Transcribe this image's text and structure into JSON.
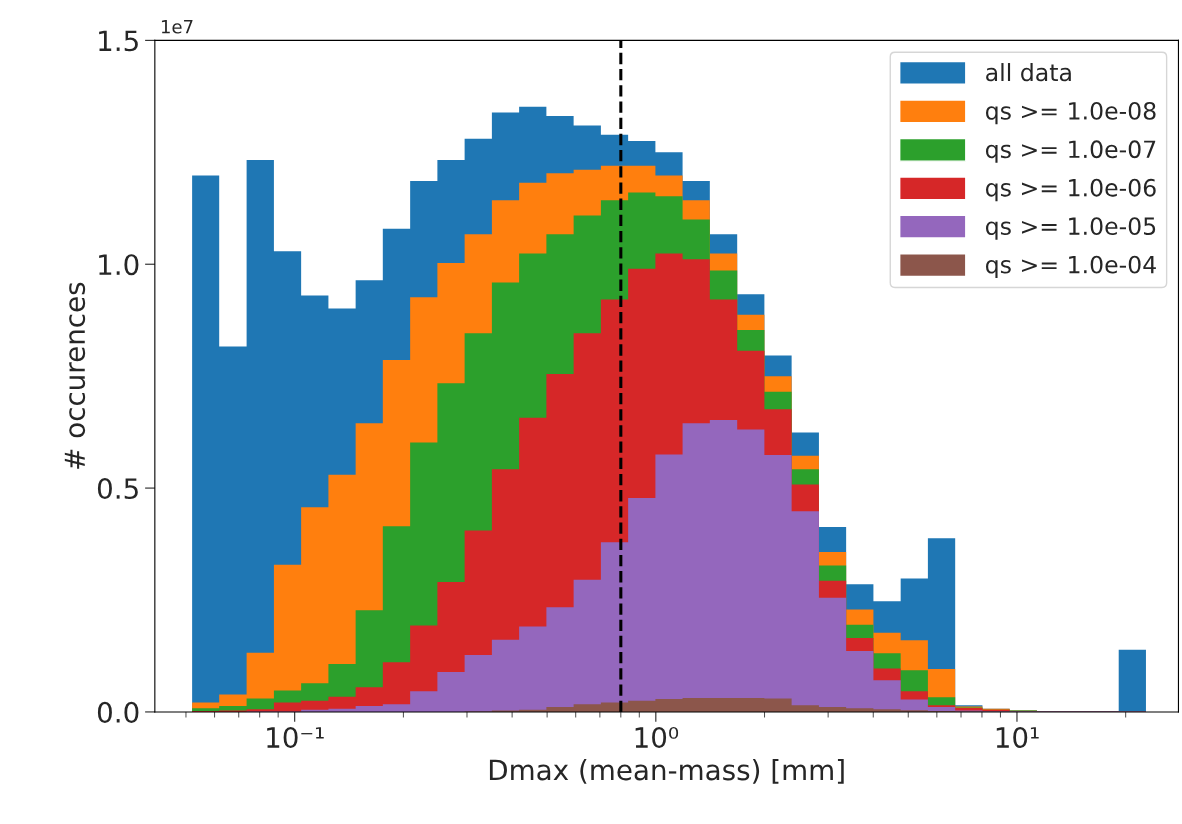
{
  "chart_data": {
    "type": "histogram",
    "xlabel": "Dmax (mean-mass) [mm]",
    "ylabel": "# occurences",
    "bins": [
      0.052,
      0.0618,
      0.0736,
      0.0876,
      0.1042,
      0.124,
      0.1475,
      0.1754,
      0.2088,
      0.2484,
      0.2955,
      0.3516,
      0.4183,
      0.4977,
      0.5921,
      0.7045,
      0.8382,
      0.9973,
      1.186,
      1.411,
      1.68,
      1.998,
      2.377,
      2.829,
      3.365,
      4.004,
      4.764,
      5.667,
      6.744,
      8.024,
      9.546,
      11.36,
      13.51,
      16.08,
      19.13,
      22.76
    ],
    "series": [
      {
        "name": "all data",
        "color": "#1f77b4",
        "values": [
          1.198,
          0.816,
          1.233,
          1.029,
          0.93,
          0.901,
          0.964,
          1.079,
          1.186,
          1.233,
          1.28,
          1.339,
          1.352,
          1.331,
          1.31,
          1.289,
          1.275,
          1.25,
          1.186,
          1.067,
          0.933,
          0.796,
          0.624,
          0.413,
          0.285,
          0.247,
          0.298,
          0.388,
          0.015,
          0.007,
          0.003,
          0.002,
          0.002,
          0.002,
          0.139
        ]
      },
      {
        "name": "qs >= 1.0e-08",
        "color": "#ff7f0e",
        "values": [
          0.021,
          0.039,
          0.132,
          0.329,
          0.457,
          0.53,
          0.645,
          0.786,
          0.926,
          1.003,
          1.067,
          1.143,
          1.182,
          1.203,
          1.211,
          1.22,
          1.22,
          1.198,
          1.143,
          1.024,
          0.887,
          0.75,
          0.572,
          0.357,
          0.229,
          0.177,
          0.16,
          0.096,
          0.012,
          0.007,
          0.003,
          0.002,
          0.002,
          0.002,
          0.002
        ]
      },
      {
        "name": "qs >= 1.0e-07",
        "color": "#2ca02c",
        "values": [
          0.008,
          0.013,
          0.03,
          0.048,
          0.064,
          0.107,
          0.227,
          0.415,
          0.602,
          0.734,
          0.846,
          0.959,
          1.024,
          1.067,
          1.109,
          1.143,
          1.16,
          1.152,
          1.1,
          0.986,
          0.853,
          0.715,
          0.542,
          0.327,
          0.195,
          0.131,
          0.093,
          0.033,
          0.01,
          0.005,
          0.003,
          0.002,
          0.002,
          0.002,
          0.002
        ]
      },
      {
        "name": "qs >= 1.0e-06",
        "color": "#d62728",
        "values": [
          0.002,
          0.003,
          0.006,
          0.021,
          0.025,
          0.034,
          0.055,
          0.111,
          0.193,
          0.29,
          0.405,
          0.542,
          0.657,
          0.755,
          0.846,
          0.921,
          0.99,
          1.024,
          1.011,
          0.921,
          0.807,
          0.676,
          0.508,
          0.293,
          0.165,
          0.097,
          0.046,
          0.015,
          0.009,
          0.005,
          0.002,
          0.002,
          0.002,
          0.002,
          0.002
        ]
      },
      {
        "name": "qs >= 1.0e-05",
        "color": "#9467bd",
        "values": [
          0,
          0,
          0.001,
          0.001,
          0.005,
          0.007,
          0.013,
          0.017,
          0.046,
          0.089,
          0.127,
          0.161,
          0.191,
          0.234,
          0.295,
          0.379,
          0.478,
          0.575,
          0.645,
          0.652,
          0.631,
          0.574,
          0.448,
          0.255,
          0.136,
          0.071,
          0.028,
          0.011,
          0.003,
          0.002,
          0.002,
          0.002,
          0.002,
          0.002,
          0.002
        ]
      },
      {
        "name": "qs >= 1.0e-04",
        "color": "#8c564b",
        "values": [
          0,
          0,
          0,
          0,
          0,
          0,
          0,
          0,
          0,
          0,
          0.001,
          0.003,
          0.005,
          0.011,
          0.017,
          0.021,
          0.025,
          0.029,
          0.031,
          0.031,
          0.031,
          0.03,
          0.015,
          0.011,
          0.008,
          0.006,
          0.004,
          0.002,
          0.001,
          0.001,
          0.001,
          0.001,
          0.001,
          0.001,
          0.001
        ]
      }
    ],
    "log": "x",
    "xlim": [
      0.041,
      28
    ],
    "xticks": [
      {
        "value": 0.1,
        "label": "10⁻¹"
      },
      {
        "value": 1,
        "label": "10⁰"
      },
      {
        "value": 10,
        "label": "10¹"
      }
    ],
    "ylim": [
      0,
      1.5
    ],
    "yticks": [
      {
        "value": 0,
        "label": "0.0"
      },
      0.5,
      {
        "value": 1,
        "label": "1.0"
      },
      1.5
    ],
    "annotations": [
      "1e7"
    ],
    "ref_lines": [
      {
        "axis": "x",
        "value": 0.8,
        "color": "#000000",
        "line_style": "dashed"
      }
    ],
    "legend": "top right",
    "grid": false
  }
}
